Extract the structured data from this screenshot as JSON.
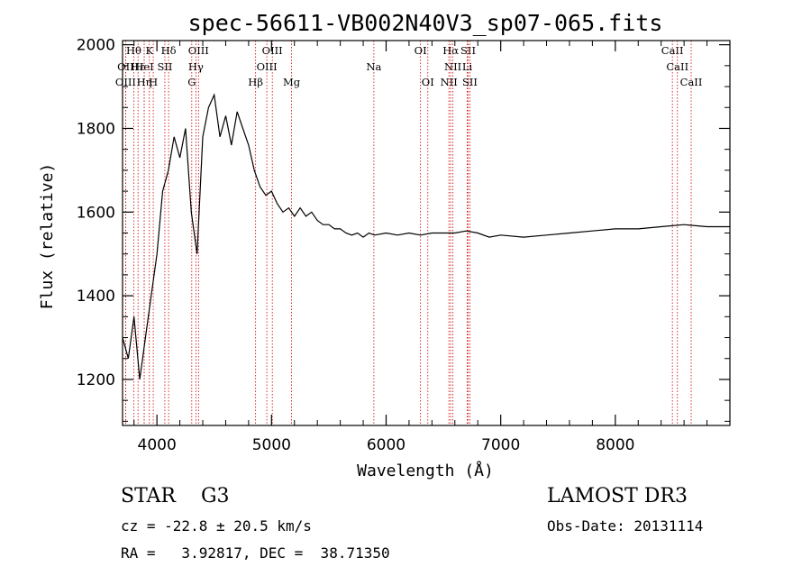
{
  "chart_data": {
    "type": "line",
    "title": "spec-56611-VB002N40V3_sp07-065.fits",
    "xlabel": "Wavelength (Å)",
    "ylabel": "Flux (relative)",
    "xlim": [
      3700,
      9000
    ],
    "ylim": [
      1090,
      2010
    ],
    "x_ticks": [
      4000,
      5000,
      6000,
      7000,
      8000
    ],
    "y_ticks": [
      1200,
      1400,
      1600,
      1800,
      2000
    ],
    "series": [
      {
        "name": "spectrum",
        "x": [
          3700,
          3750,
          3800,
          3850,
          3900,
          3950,
          4000,
          4050,
          4100,
          4150,
          4200,
          4250,
          4300,
          4350,
          4400,
          4450,
          4500,
          4550,
          4600,
          4650,
          4700,
          4750,
          4800,
          4850,
          4900,
          4950,
          5000,
          5050,
          5100,
          5150,
          5200,
          5250,
          5300,
          5350,
          5400,
          5450,
          5500,
          5550,
          5600,
          5650,
          5700,
          5750,
          5800,
          5850,
          5900,
          6000,
          6100,
          6200,
          6300,
          6400,
          6500,
          6600,
          6700,
          6800,
          6900,
          7000,
          7200,
          7400,
          7600,
          7800,
          8000,
          8200,
          8400,
          8600,
          8800,
          9000
        ],
        "y": [
          1300,
          1250,
          1350,
          1200,
          1300,
          1400,
          1500,
          1650,
          1700,
          1780,
          1730,
          1800,
          1600,
          1500,
          1780,
          1850,
          1880,
          1780,
          1830,
          1760,
          1840,
          1800,
          1760,
          1700,
          1660,
          1640,
          1650,
          1620,
          1600,
          1610,
          1590,
          1610,
          1590,
          1600,
          1580,
          1570,
          1570,
          1560,
          1560,
          1550,
          1545,
          1550,
          1540,
          1550,
          1545,
          1550,
          1545,
          1550,
          1545,
          1550,
          1550,
          1550,
          1555,
          1550,
          1540,
          1545,
          1540,
          1545,
          1550,
          1555,
          1560,
          1560,
          1565,
          1570,
          1565,
          1565
        ]
      }
    ],
    "line_markers": [
      {
        "label": "Hθ",
        "wavelength": 3798,
        "row": 0
      },
      {
        "label": "OII",
        "wavelength": 3727,
        "row": 1
      },
      {
        "label": "OIII",
        "wavelength": 3727,
        "row": 2
      },
      {
        "label": "Hε",
        "wavelength": 3835,
        "row": 1
      },
      {
        "label": "HeI",
        "wavelength": 3889,
        "row": 1
      },
      {
        "label": "Hη",
        "wavelength": 3889,
        "row": 2
      },
      {
        "label": "K",
        "wavelength": 3934,
        "row": 0
      },
      {
        "label": "H",
        "wavelength": 3968,
        "row": 2
      },
      {
        "label": "SII",
        "wavelength": 4069,
        "row": 1
      },
      {
        "label": "Hδ",
        "wavelength": 4102,
        "row": 0
      },
      {
        "label": "OIII",
        "wavelength": 4363,
        "row": 0
      },
      {
        "label": "Hγ",
        "wavelength": 4340,
        "row": 1
      },
      {
        "label": "G",
        "wavelength": 4304,
        "row": 2
      },
      {
        "label": "Hβ",
        "wavelength": 4861,
        "row": 2
      },
      {
        "label": "OIII",
        "wavelength": 5007,
        "row": 0
      },
      {
        "label": "OIII",
        "wavelength": 4959,
        "row": 1
      },
      {
        "label": "Mg",
        "wavelength": 5175,
        "row": 2
      },
      {
        "label": "Na",
        "wavelength": 5893,
        "row": 1
      },
      {
        "label": "OI",
        "wavelength": 6300,
        "row": 0
      },
      {
        "label": "OI",
        "wavelength": 6364,
        "row": 2
      },
      {
        "label": "Hα",
        "wavelength": 6563,
        "row": 0
      },
      {
        "label": "NII",
        "wavelength": 6583,
        "row": 1
      },
      {
        "label": "NII",
        "wavelength": 6548,
        "row": 2
      },
      {
        "label": "SII",
        "wavelength": 6716,
        "row": 0
      },
      {
        "label": "Li",
        "wavelength": 6708,
        "row": 1
      },
      {
        "label": "SII",
        "wavelength": 6731,
        "row": 2
      },
      {
        "label": "CaII",
        "wavelength": 8498,
        "row": 0
      },
      {
        "label": "CaII",
        "wavelength": 8542,
        "row": 1
      },
      {
        "label": "CaII",
        "wavelength": 8662,
        "row": 2
      }
    ],
    "marker_color": "#cc0000"
  },
  "footer": {
    "class_text": "STAR    G3",
    "survey_text": "LAMOST DR3",
    "cz_text": "cz = -22.8 ± 20.5 km/s",
    "obs_text": "Obs-Date: 20131114",
    "radec_text": "RA =   3.92817, DEC =  38.71350"
  }
}
